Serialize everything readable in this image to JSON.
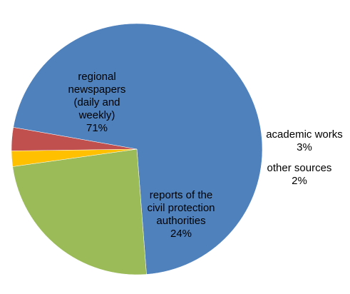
{
  "chart_data": {
    "type": "pie",
    "title": "",
    "slices": [
      {
        "label_lines": [
          "regional",
          "newspapers",
          "(daily and",
          "weekly)"
        ],
        "percent_label": "71%",
        "value": 71,
        "color": "#4f81bd"
      },
      {
        "label_lines": [
          "reports of the",
          "civil protection",
          "authorities"
        ],
        "percent_label": "24%",
        "value": 24,
        "color": "#9bbb59"
      },
      {
        "label_lines": [
          "other sources"
        ],
        "percent_label": "2%",
        "value": 2,
        "color": "#ffc000"
      },
      {
        "label_lines": [
          "academic works"
        ],
        "percent_label": "3%",
        "value": 3,
        "color": "#c0504d"
      }
    ],
    "start_angle_deg": -80,
    "clockwise": true,
    "legend": "none"
  }
}
